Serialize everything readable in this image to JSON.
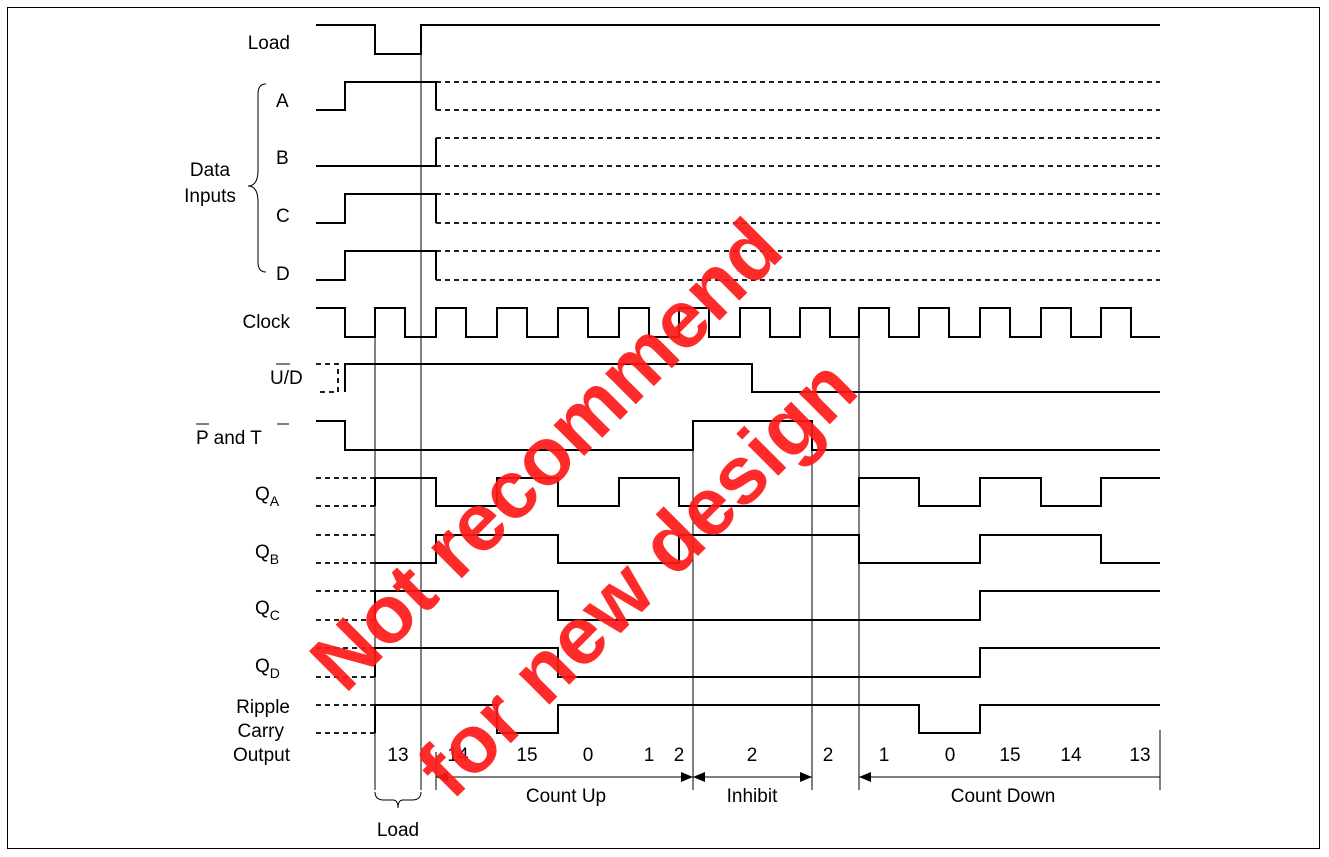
{
  "signals": {
    "load": "Load",
    "a": "A",
    "b": "B",
    "c": "C",
    "d": "D",
    "data_inputs_line1": "Data",
    "data_inputs_line2": "Inputs",
    "clock": "Clock",
    "ud_u": "U/",
    "ud_d": "D",
    "pt_p": "P",
    "pt_and": " and ",
    "pt_t": "T",
    "q": "Q",
    "qa_sub": "A",
    "qb_sub": "B",
    "qc_sub": "C",
    "qd_sub": "D",
    "ripple1": "Ripple",
    "ripple2": "Carry",
    "ripple3": "Output"
  },
  "counts": [
    "13",
    "14",
    "15",
    "0",
    "1",
    "2",
    "2",
    "2",
    "1",
    "0",
    "15",
    "14",
    "13"
  ],
  "intervals": {
    "count_up": "Count Up",
    "inhibit": "Inhibit",
    "count_down": "Count Down",
    "load": "Load"
  },
  "watermark": {
    "line1": "Not recommend",
    "line2": "for new design",
    "color": "#ff1a1a"
  }
}
